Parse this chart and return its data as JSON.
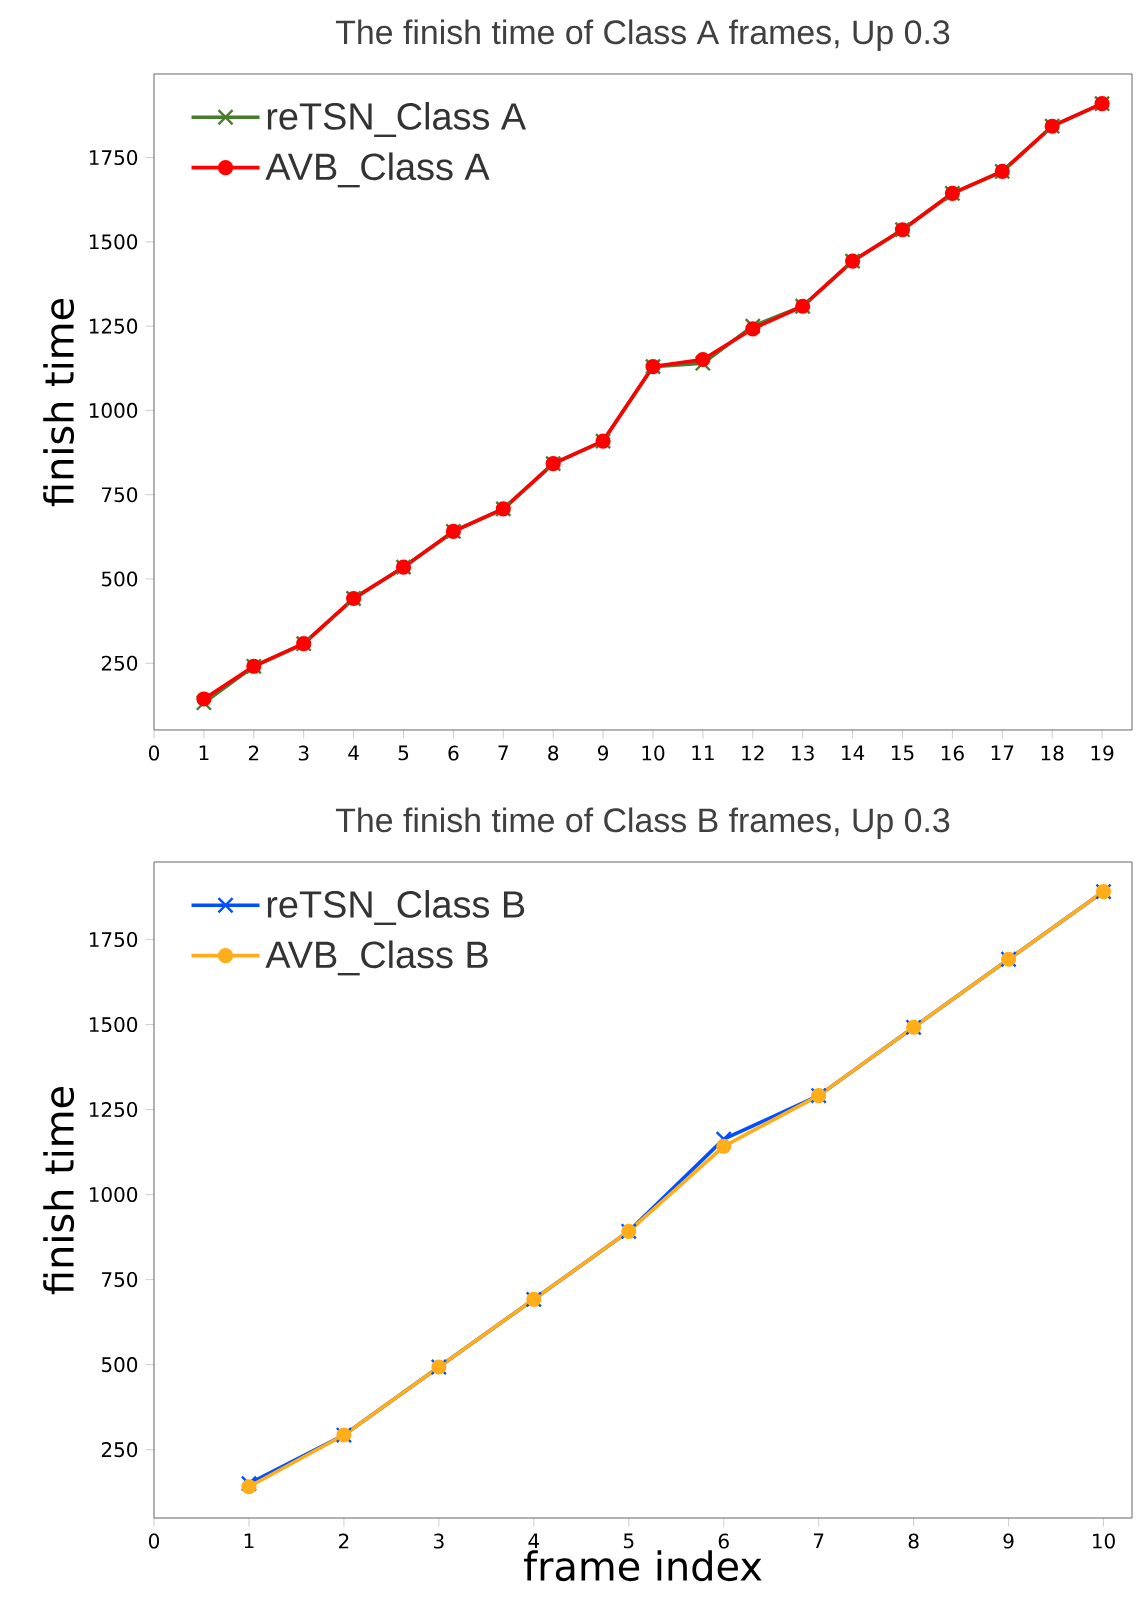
{
  "chart_data": [
    {
      "type": "line",
      "title": "The finish time of Class A frames, Up 0.3",
      "ylabel": "finish time",
      "x": [
        1,
        2,
        3,
        4,
        5,
        6,
        7,
        8,
        9,
        10,
        11,
        12,
        13,
        14,
        15,
        16,
        17,
        18,
        19
      ],
      "xlim": [
        0,
        19.6
      ],
      "xticks": [
        0,
        1,
        2,
        3,
        4,
        5,
        6,
        7,
        8,
        9,
        10,
        11,
        12,
        13,
        14,
        15,
        16,
        17,
        18,
        19
      ],
      "ylim": [
        52,
        1998
      ],
      "yticks": [
        250,
        500,
        750,
        1000,
        1250,
        1500,
        1750
      ],
      "legend": "top left",
      "series": [
        {
          "name": "reTSN_Class A",
          "color": "#4a7c2f",
          "marker": "cross",
          "values": [
            133,
            241,
            308,
            442,
            535,
            641,
            708,
            842,
            909,
            1130,
            1140,
            1250,
            1309,
            1443,
            1536,
            1644,
            1709,
            1843,
            1910
          ]
        },
        {
          "name": "AVB_Class A",
          "color": "#ff0000",
          "marker": "circle",
          "values": [
            144,
            241,
            308,
            442,
            535,
            641,
            708,
            842,
            909,
            1130,
            1151,
            1242,
            1309,
            1443,
            1536,
            1644,
            1709,
            1843,
            1910
          ]
        }
      ]
    },
    {
      "type": "line",
      "title": "The finish time of Class B frames, Up 0.3",
      "ylabel": "finish time",
      "xlabel": "frame index",
      "x": [
        1,
        2,
        3,
        4,
        5,
        6,
        7,
        8,
        9,
        10
      ],
      "xlim": [
        0,
        10.3
      ],
      "xticks": [
        0,
        1,
        2,
        3,
        4,
        5,
        6,
        7,
        8,
        9,
        10
      ],
      "ylim": [
        49,
        1978
      ],
      "yticks": [
        250,
        500,
        750,
        1000,
        1250,
        1500,
        1750
      ],
      "legend": "top left",
      "series": [
        {
          "name": "reTSN_Class B",
          "color": "#0050ff",
          "marker": "cross",
          "values": [
            150,
            293,
            493,
            692,
            892,
            1163,
            1291,
            1492,
            1692,
            1891
          ]
        },
        {
          "name": "AVB_Class B",
          "color": "#ffad1a",
          "marker": "circle",
          "values": [
            141,
            293,
            493,
            692,
            892,
            1142,
            1291,
            1492,
            1692,
            1891
          ]
        }
      ]
    }
  ]
}
